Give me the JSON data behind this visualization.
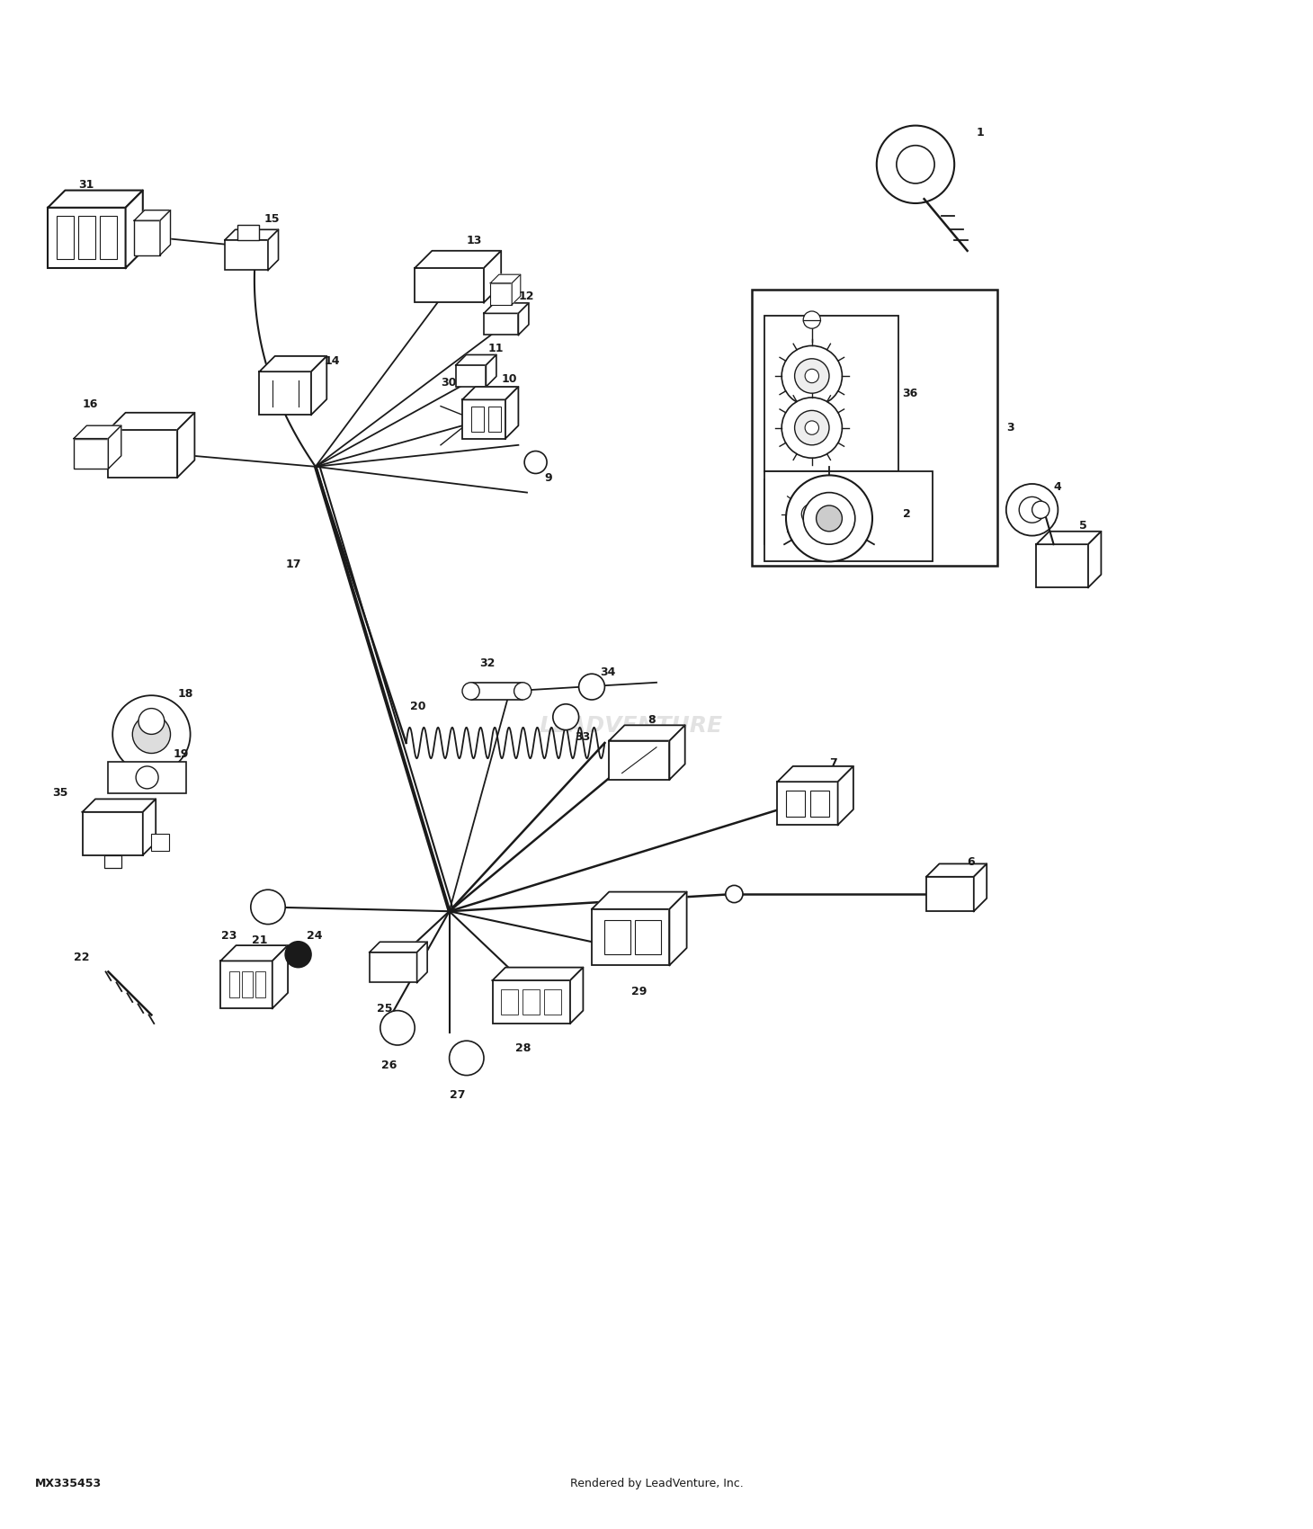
{
  "bg_color": "#ffffff",
  "line_color": "#1a1a1a",
  "fig_width": 15.0,
  "fig_height": 17.5,
  "watermark": "LEADVENTURE",
  "footer_left": "MX335453",
  "footer_right": "Rendered by LeadVenture, Inc."
}
